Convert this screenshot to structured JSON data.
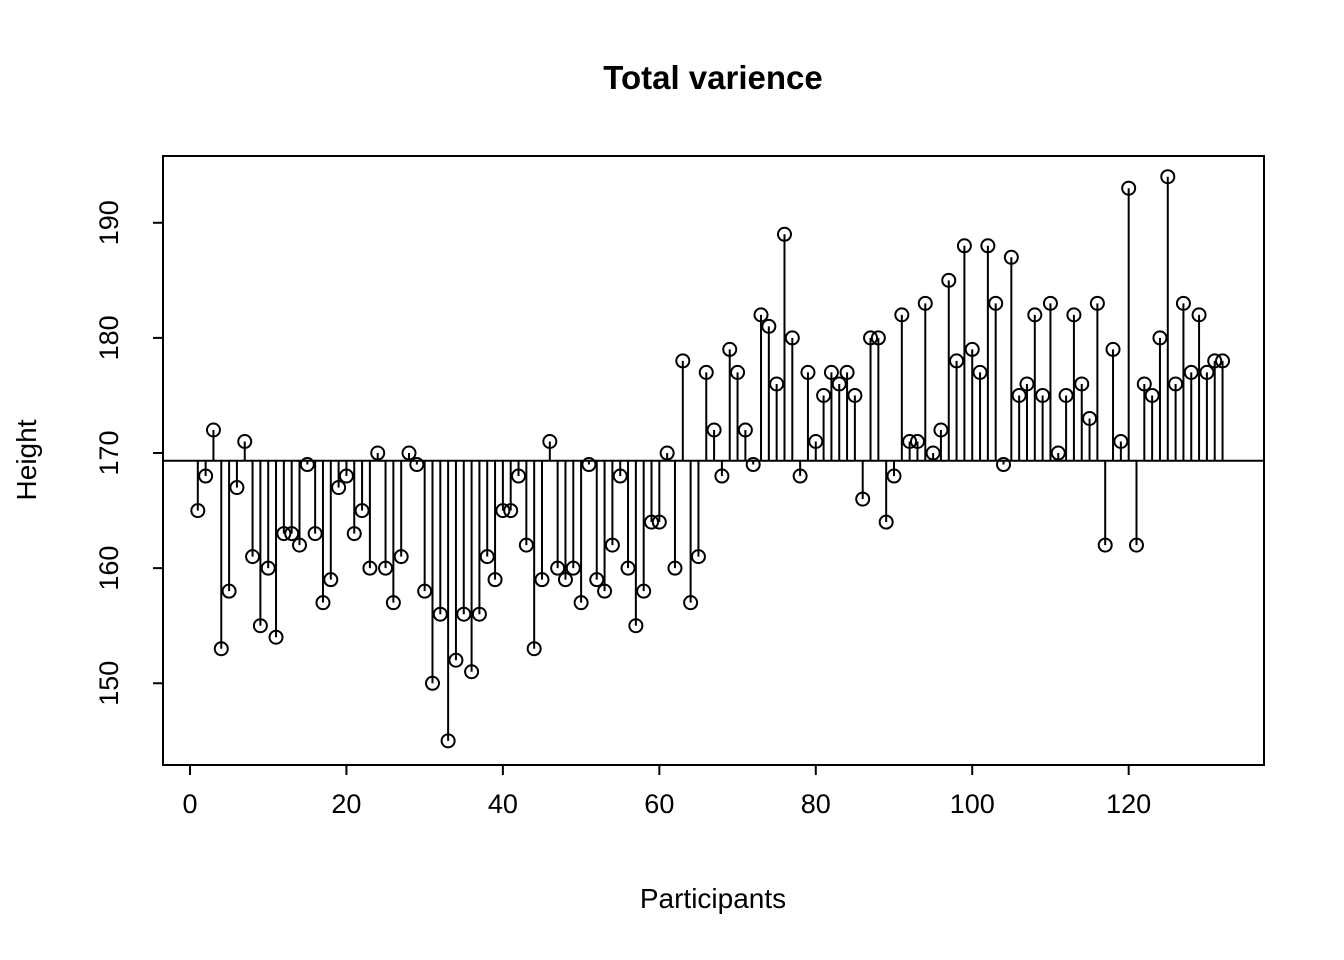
{
  "page": {
    "background": "#ffffff",
    "foreground": "#000000"
  },
  "chart_data": {
    "type": "scatter",
    "subtype": "stem-plot-open-circles",
    "title": "Total varience",
    "xlabel": "Participants",
    "ylabel": "Height",
    "x_ticks": [
      0,
      20,
      40,
      60,
      80,
      100,
      120
    ],
    "y_ticks": [
      150,
      160,
      170,
      180,
      190
    ],
    "xlim": [
      -3.45,
      137.3
    ],
    "ylim": [
      142.9,
      195.8
    ],
    "baseline_value": 169.33,
    "grid": false,
    "legend": null,
    "point_shape": "open-circle",
    "stroke_color": "#000000",
    "x_start": 1,
    "n_points": 132,
    "values": [
      165,
      168,
      172,
      153,
      158,
      167,
      171,
      161,
      155,
      160,
      154,
      163,
      163,
      162,
      169,
      163,
      157,
      159,
      167,
      168,
      163,
      165,
      160,
      170,
      160,
      157,
      161,
      170,
      169,
      158,
      150,
      156,
      145,
      152,
      156,
      151,
      156,
      161,
      159,
      165,
      165,
      168,
      162,
      153,
      159,
      171,
      160,
      159,
      160,
      157,
      169,
      159,
      158,
      162,
      168,
      160,
      155,
      158,
      164,
      164,
      170,
      160,
      178,
      157,
      161,
      177,
      172,
      168,
      179,
      177,
      172,
      169,
      182,
      181,
      176,
      189,
      180,
      168,
      177,
      171,
      175,
      177,
      176,
      177,
      175,
      166,
      180,
      180,
      164,
      168,
      182,
      171,
      171,
      183,
      170,
      172,
      185,
      178,
      188,
      179,
      177,
      188,
      183,
      169,
      187,
      175,
      176,
      182,
      175,
      183,
      170,
      175,
      182,
      176,
      173,
      183,
      162,
      179,
      171,
      193,
      162,
      176,
      175,
      180,
      194,
      176,
      183,
      177,
      182,
      177,
      178,
      178
    ]
  }
}
